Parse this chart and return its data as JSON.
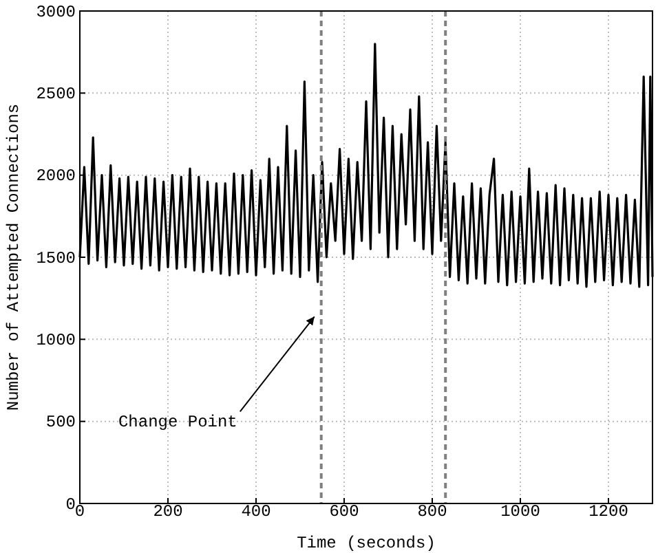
{
  "chart_data": {
    "type": "line",
    "xlabel": "Time (seconds)",
    "ylabel": "Number of Attempted Connections",
    "xlim": [
      0,
      1300
    ],
    "ylim": [
      0,
      3000
    ],
    "xticks": [
      0,
      200,
      400,
      600,
      800,
      1000,
      1200
    ],
    "yticks": [
      0,
      500,
      1000,
      1500,
      2000,
      2500,
      3000
    ],
    "grid": true,
    "marker": "none",
    "line_style": "solid",
    "series": [
      {
        "color": "#000000",
        "x": [
          0,
          10,
          20,
          30,
          40,
          50,
          60,
          70,
          80,
          90,
          100,
          110,
          120,
          130,
          140,
          150,
          160,
          170,
          180,
          190,
          200,
          210,
          220,
          230,
          240,
          250,
          260,
          270,
          280,
          290,
          300,
          310,
          320,
          330,
          340,
          350,
          360,
          370,
          380,
          390,
          400,
          410,
          420,
          430,
          440,
          450,
          460,
          470,
          480,
          490,
          500,
          510,
          520,
          530,
          540,
          550,
          560,
          570,
          580,
          590,
          600,
          610,
          620,
          630,
          640,
          650,
          660,
          670,
          680,
          690,
          700,
          710,
          720,
          730,
          740,
          750,
          760,
          770,
          780,
          790,
          800,
          810,
          820,
          830,
          840,
          850,
          860,
          870,
          880,
          890,
          900,
          910,
          920,
          930,
          940,
          950,
          960,
          970,
          980,
          990,
          1000,
          1010,
          1020,
          1030,
          1040,
          1050,
          1060,
          1070,
          1080,
          1090,
          1100,
          1110,
          1120,
          1130,
          1140,
          1150,
          1160,
          1170,
          1180,
          1190,
          1200,
          1210,
          1220,
          1230,
          1240,
          1250,
          1260,
          1270,
          1280,
          1290,
          1295,
          1300
        ],
        "values": [
          1500,
          2050,
          1460,
          2230,
          1480,
          2000,
          1440,
          2060,
          1470,
          1980,
          1450,
          1990,
          1460,
          1960,
          1430,
          1990,
          1450,
          1980,
          1420,
          1960,
          1440,
          2000,
          1430,
          1990,
          1440,
          2040,
          1420,
          1990,
          1410,
          1960,
          1420,
          1950,
          1400,
          1950,
          1390,
          2010,
          1400,
          2000,
          1410,
          2030,
          1390,
          1970,
          1440,
          2100,
          1400,
          2050,
          1420,
          2300,
          1400,
          2150,
          1380,
          2570,
          1420,
          2000,
          1350,
          2080,
          1500,
          1950,
          1600,
          2160,
          1520,
          2100,
          1490,
          2080,
          1600,
          2450,
          1550,
          2800,
          1650,
          2350,
          1500,
          2300,
          1550,
          2250,
          1700,
          2400,
          1600,
          2480,
          1550,
          2200,
          1520,
          2300,
          1600,
          2200,
          1380,
          1950,
          1360,
          1870,
          1340,
          1950,
          1370,
          1920,
          1340,
          1880,
          2100,
          1350,
          1880,
          1330,
          1900,
          1350,
          1870,
          1340,
          2040,
          1350,
          1900,
          1370,
          1890,
          1340,
          1940,
          1330,
          1920,
          1360,
          1880,
          1340,
          1860,
          1320,
          1860,
          1350,
          1900,
          1360,
          1880,
          1330,
          1860,
          1350,
          1880,
          1340,
          1850,
          1320,
          2600,
          1330,
          2600,
          1380
        ]
      }
    ],
    "ref_lines": [
      {
        "axis": "x",
        "value": 548,
        "color": "#808080",
        "line_style": "dashed"
      },
      {
        "axis": "x",
        "value": 830,
        "color": "#808080",
        "line_style": "dashed"
      }
    ],
    "annotations": [
      {
        "text": "Change Point",
        "x": 545,
        "y": 1180
      }
    ]
  }
}
